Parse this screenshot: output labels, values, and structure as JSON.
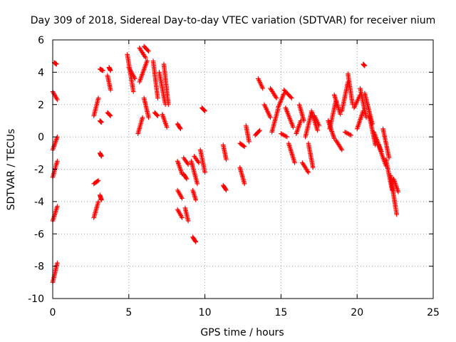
{
  "chart_data": {
    "type": "scatter",
    "title": "Day 309 of 2018, Sidereal Day-to-day VTEC variation (SDTVAR) for receiver nium",
    "xlabel": "GPS time / hours",
    "ylabel": "SDTVAR / TECUs",
    "xlim": [
      0,
      25
    ],
    "ylim": [
      -10,
      6
    ],
    "xticks": [
      0,
      5,
      10,
      15,
      20,
      25
    ],
    "xtick_labels": [
      "0",
      "5",
      "10",
      "15",
      "20",
      "25"
    ],
    "yticks": [
      -10,
      -8,
      -6,
      -4,
      -2,
      0,
      2,
      4,
      6
    ],
    "ytick_labels": [
      "-10",
      "-8",
      "-6",
      "-4",
      "-2",
      "0",
      "2",
      "4",
      "6"
    ],
    "grid": true,
    "marker": "plus",
    "marker_color": "#ff0000",
    "series": [
      {
        "name": "SDTVAR",
        "segments": [
          [
            0.0,
            2.8,
            0.3,
            2.3
          ],
          [
            0.0,
            -0.8,
            0.3,
            0.0
          ],
          [
            0.0,
            -2.5,
            0.3,
            -1.5
          ],
          [
            0.0,
            -5.2,
            0.3,
            -4.3
          ],
          [
            0.0,
            -9.0,
            0.3,
            -7.8
          ],
          [
            0.1,
            4.6,
            0.25,
            4.5
          ],
          [
            2.7,
            1.3,
            3.0,
            2.4
          ],
          [
            2.7,
            -2.9,
            3.0,
            -2.7
          ],
          [
            2.7,
            -5.0,
            3.0,
            -4.0
          ],
          [
            3.1,
            4.2,
            3.3,
            4.1
          ],
          [
            3.1,
            1.0,
            3.2,
            0.9
          ],
          [
            3.1,
            -1.0,
            3.2,
            -1.2
          ],
          [
            3.1,
            -3.6,
            3.2,
            -3.9
          ],
          [
            3.6,
            3.8,
            3.8,
            2.9
          ],
          [
            3.6,
            1.5,
            3.8,
            1.3
          ],
          [
            3.7,
            4.3,
            3.8,
            4.1
          ],
          [
            4.9,
            5.1,
            5.3,
            2.8
          ],
          [
            5.0,
            4.3,
            5.4,
            3.6
          ],
          [
            5.6,
            0.2,
            5.9,
            1.2
          ],
          [
            5.7,
            5.5,
            6.1,
            4.9
          ],
          [
            5.7,
            3.4,
            6.2,
            4.7
          ],
          [
            6.0,
            5.6,
            6.3,
            5.3
          ],
          [
            6.0,
            2.4,
            6.3,
            1.2
          ],
          [
            6.6,
            4.7,
            6.9,
            2.4
          ],
          [
            6.7,
            1.5,
            6.9,
            1.3
          ],
          [
            7.0,
            4.0,
            7.4,
            2.0
          ],
          [
            7.2,
            1.4,
            7.5,
            0.6
          ],
          [
            7.3,
            4.5,
            7.6,
            2.0
          ],
          [
            8.2,
            0.8,
            8.4,
            0.5
          ],
          [
            8.2,
            -1.5,
            8.5,
            -2.3
          ],
          [
            8.2,
            -3.3,
            8.5,
            -3.8
          ],
          [
            8.2,
            -4.5,
            8.5,
            -5.0
          ],
          [
            8.6,
            -1.3,
            8.9,
            -1.7
          ],
          [
            8.6,
            -2.3,
            8.8,
            -2.6
          ],
          [
            8.7,
            -4.4,
            8.9,
            -5.2
          ],
          [
            9.1,
            -1.5,
            9.5,
            -2.9
          ],
          [
            9.2,
            -3.3,
            9.4,
            -3.9
          ],
          [
            9.2,
            -6.2,
            9.4,
            -6.5
          ],
          [
            9.3,
            -1.2,
            9.6,
            -1.6
          ],
          [
            9.7,
            -0.8,
            10.0,
            -2.2
          ],
          [
            9.8,
            1.8,
            10.0,
            1.6
          ],
          [
            11.2,
            -0.5,
            11.4,
            -1.4
          ],
          [
            11.2,
            -3.0,
            11.4,
            -3.3
          ],
          [
            12.3,
            -0.4,
            12.6,
            -0.6
          ],
          [
            12.3,
            -1.9,
            12.6,
            -2.9
          ],
          [
            12.7,
            0.7,
            12.9,
            -0.3
          ],
          [
            13.3,
            0.1,
            13.6,
            0.4
          ],
          [
            13.5,
            3.6,
            13.8,
            3.0
          ],
          [
            13.9,
            2.0,
            14.3,
            1.2
          ],
          [
            14.3,
            3.0,
            14.7,
            2.4
          ],
          [
            14.4,
            0.3,
            14.8,
            1.7
          ],
          [
            14.8,
            1.8,
            15.2,
            2.7
          ],
          [
            15.0,
            0.2,
            15.4,
            0.0
          ],
          [
            15.2,
            2.9,
            15.7,
            2.4
          ],
          [
            15.3,
            1.8,
            15.8,
            0.6
          ],
          [
            15.5,
            -0.4,
            15.9,
            -1.6
          ],
          [
            16.0,
            0.2,
            16.3,
            1.0
          ],
          [
            16.2,
            2.0,
            16.5,
            1.0
          ],
          [
            16.4,
            -1.6,
            16.8,
            -2.2
          ],
          [
            16.6,
            0.0,
            17.0,
            1.5
          ],
          [
            16.8,
            -0.4,
            17.1,
            -1.9
          ],
          [
            17.0,
            1.6,
            17.4,
            0.4
          ],
          [
            17.2,
            1.3,
            17.5,
            0.7
          ],
          [
            18.1,
            1.0,
            18.5,
            -0.1
          ],
          [
            18.2,
            0.5,
            18.6,
            2.2
          ],
          [
            18.5,
            2.6,
            18.9,
            1.4
          ],
          [
            18.6,
            -0.2,
            19.0,
            -0.8
          ],
          [
            19.0,
            1.6,
            19.4,
            3.4
          ],
          [
            19.2,
            0.3,
            19.6,
            0.1
          ],
          [
            19.4,
            3.9,
            19.7,
            2.0
          ],
          [
            19.8,
            1.8,
            20.2,
            2.6
          ],
          [
            20.0,
            0.5,
            20.4,
            1.6
          ],
          [
            20.2,
            3.0,
            20.6,
            1.2
          ],
          [
            20.4,
            4.5,
            20.5,
            4.4
          ],
          [
            20.5,
            2.7,
            21.0,
            0.8
          ],
          [
            20.8,
            1.3,
            21.2,
            -0.5
          ],
          [
            21.1,
            0.3,
            21.6,
            -0.9
          ],
          [
            21.4,
            -0.5,
            21.9,
            -1.8
          ],
          [
            21.7,
            0.5,
            22.1,
            -1.3
          ],
          [
            21.9,
            -1.4,
            22.3,
            -3.3
          ],
          [
            22.2,
            -2.4,
            22.6,
            -4.8
          ],
          [
            22.4,
            -2.6,
            22.7,
            -3.4
          ]
        ]
      }
    ]
  }
}
